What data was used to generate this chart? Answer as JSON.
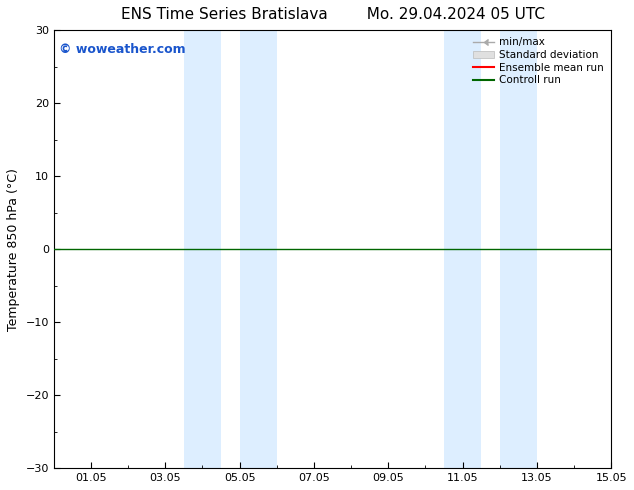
{
  "title": "ENS Time Series Bratislava        Mo. 29.04.2024 05 UTC",
  "ylabel": "Temperature 850 hPa (°C)",
  "watermark": "© woweather.com",
  "xlim": [
    0,
    14
  ],
  "ylim": [
    -30,
    30
  ],
  "yticks": [
    -30,
    -20,
    -10,
    0,
    10,
    20,
    30
  ],
  "xtick_labels": [
    "01.05",
    "03.05",
    "05.05",
    "07.05",
    "09.05",
    "11.05",
    "13.05",
    "15.05"
  ],
  "xtick_positions": [
    1,
    3,
    5,
    7,
    9,
    11,
    13,
    15
  ],
  "shaded_bands": [
    [
      3.5,
      4.5
    ],
    [
      5.0,
      6.0
    ],
    [
      10.5,
      11.5
    ],
    [
      12.0,
      13.0
    ]
  ],
  "shade_color": "#ddeeff",
  "zero_line_color": "#006600",
  "legend_labels": [
    "min/max",
    "Standard deviation",
    "Ensemble mean run",
    "Controll run"
  ],
  "legend_line_colors": [
    "#aaaaaa",
    "#cccccc",
    "#ff0000",
    "#006600"
  ],
  "background_color": "#ffffff",
  "title_fontsize": 11,
  "label_fontsize": 9,
  "tick_fontsize": 8,
  "watermark_color": "#1a55cc"
}
